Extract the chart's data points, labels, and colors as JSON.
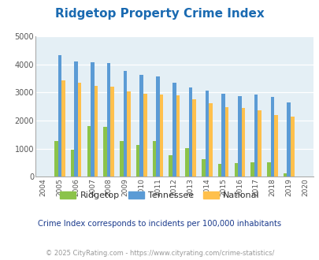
{
  "title": "Ridgetop Property Crime Index",
  "years": [
    "2004",
    "2005",
    "2006",
    "2007",
    "2008",
    "2009",
    "2010",
    "2011",
    "2012",
    "2013",
    "2014",
    "2015",
    "2016",
    "2017",
    "2018",
    "2019",
    "2020"
  ],
  "ridgetop": [
    0,
    1280,
    970,
    1800,
    1780,
    1280,
    1130,
    1270,
    760,
    1010,
    640,
    460,
    490,
    530,
    510,
    110,
    0
  ],
  "tennessee": [
    0,
    4320,
    4100,
    4080,
    4040,
    3760,
    3640,
    3580,
    3360,
    3180,
    3060,
    2950,
    2880,
    2940,
    2840,
    2640,
    0
  ],
  "national": [
    0,
    3440,
    3340,
    3230,
    3200,
    3040,
    2960,
    2940,
    2890,
    2750,
    2620,
    2490,
    2460,
    2360,
    2200,
    2130,
    0
  ],
  "ridgetop_color": "#8bc34a",
  "tennessee_color": "#5b9bd5",
  "national_color": "#ffc04c",
  "plot_bg": "#e4eff5",
  "ylim": [
    0,
    5000
  ],
  "yticks": [
    0,
    1000,
    2000,
    3000,
    4000,
    5000
  ],
  "subtitle": "Crime Index corresponds to incidents per 100,000 inhabitants",
  "footer": "© 2025 CityRating.com - https://www.cityrating.com/crime-statistics/",
  "title_color": "#1a6ab1",
  "subtitle_color": "#1a3a8c",
  "footer_color": "#999999",
  "bar_width": 0.22
}
